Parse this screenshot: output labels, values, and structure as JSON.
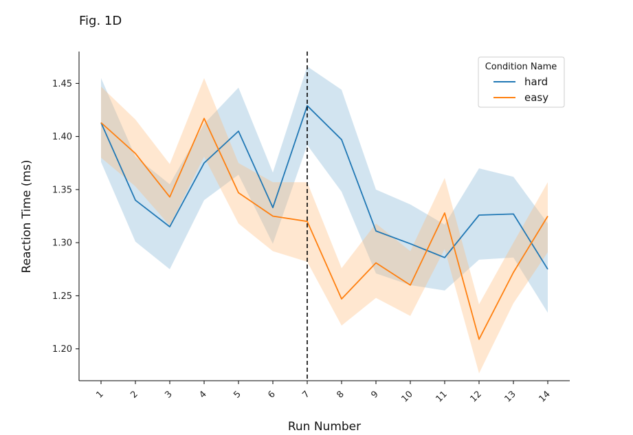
{
  "chart_data": {
    "type": "line",
    "title": "Fig. 1D",
    "xlabel": "Run Number",
    "ylabel": "Reaction Time (ms)",
    "x": [
      1,
      2,
      3,
      4,
      5,
      6,
      7,
      8,
      9,
      10,
      11,
      12,
      13,
      14
    ],
    "x_tick_labels": [
      "1",
      "2",
      "3",
      "4",
      "5",
      "6",
      "7",
      "8",
      "9",
      "10",
      "11",
      "12",
      "13",
      "14"
    ],
    "ylim": [
      1.17,
      1.48
    ],
    "y_ticks": [
      1.2,
      1.25,
      1.3,
      1.35,
      1.4,
      1.45
    ],
    "y_tick_labels": [
      "1.20",
      "1.25",
      "1.30",
      "1.35",
      "1.40",
      "1.45"
    ],
    "vertical_marker": {
      "x": 7,
      "style": "dashed",
      "color": "#000000"
    },
    "legend": {
      "title": "Condition Name",
      "placement": "top-right"
    },
    "series": [
      {
        "name": "hard",
        "color": "#1f77b4",
        "band_color": "#1f77b4",
        "values": [
          1.413,
          1.34,
          1.315,
          1.375,
          1.405,
          1.333,
          1.429,
          1.397,
          1.311,
          1.299,
          1.286,
          1.326,
          1.327,
          1.275
        ],
        "lower": [
          1.376,
          1.301,
          1.275,
          1.34,
          1.364,
          1.299,
          1.392,
          1.348,
          1.271,
          1.26,
          1.255,
          1.284,
          1.286,
          1.234
        ],
        "upper": [
          1.455,
          1.381,
          1.355,
          1.412,
          1.446,
          1.366,
          1.466,
          1.444,
          1.35,
          1.336,
          1.317,
          1.37,
          1.362,
          1.318
        ]
      },
      {
        "name": "easy",
        "color": "#ff7f0e",
        "band_color": "#ffbb78",
        "values": [
          1.413,
          1.384,
          1.343,
          1.417,
          1.347,
          1.325,
          1.32,
          1.247,
          1.281,
          1.26,
          1.328,
          1.209,
          1.272,
          1.325
        ],
        "lower": [
          1.38,
          1.353,
          1.316,
          1.381,
          1.318,
          1.292,
          1.282,
          1.222,
          1.248,
          1.231,
          1.294,
          1.177,
          1.243,
          1.291
        ],
        "upper": [
          1.447,
          1.416,
          1.374,
          1.455,
          1.375,
          1.357,
          1.357,
          1.276,
          1.318,
          1.292,
          1.361,
          1.242,
          1.3,
          1.357
        ]
      }
    ]
  }
}
